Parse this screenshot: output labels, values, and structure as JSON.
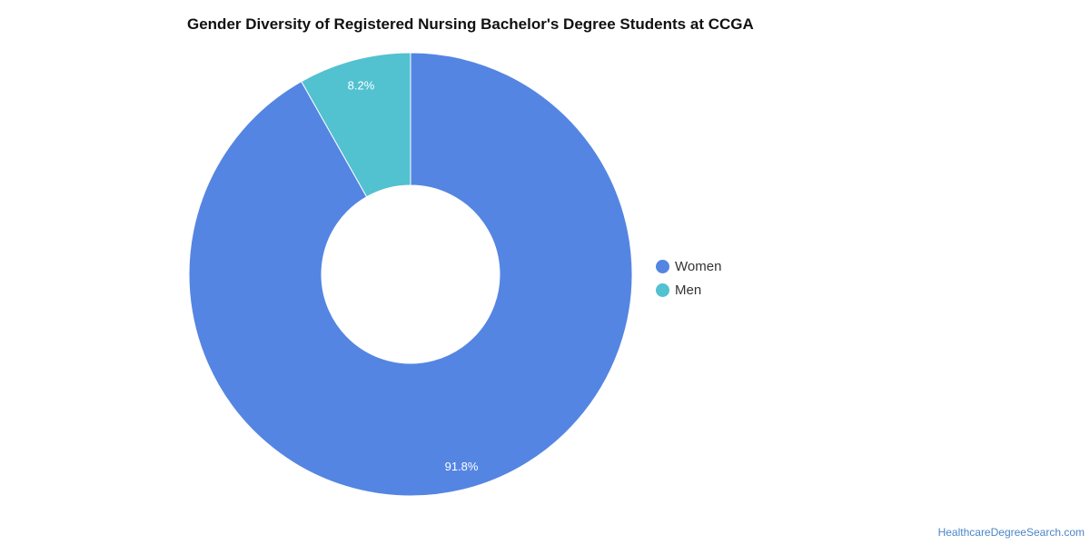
{
  "chart_data": {
    "type": "pie",
    "title": "Gender Diversity of Registered Nursing Bachelor's Degree Students at CCGA",
    "slices": [
      {
        "label": "Women",
        "value": 91.8,
        "display": "91.8%",
        "color": "#5485e2"
      },
      {
        "label": "Men",
        "value": 8.2,
        "display": "8.2%",
        "color": "#52c1d0"
      }
    ],
    "donut": true,
    "legend_position": "right"
  },
  "source": "HealthcareDegreeSearch.com"
}
